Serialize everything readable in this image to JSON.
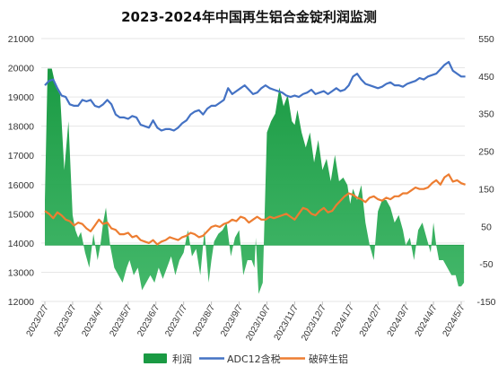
{
  "chart_data": {
    "type": "line",
    "title": "2023-2024年中国再生铝合金锭利润监测",
    "y_left": {
      "ylim": [
        12000,
        21000
      ],
      "ticks": [
        12000,
        13000,
        14000,
        15000,
        16000,
        17000,
        18000,
        19000,
        20000,
        21000
      ]
    },
    "y_right": {
      "ylim": [
        -150,
        550
      ],
      "ticks": [
        -150,
        -50,
        50,
        150,
        250,
        350,
        450,
        550
      ]
    },
    "x_ticks": [
      "2023/2/7",
      "2023/3/7",
      "2023/4/7",
      "2023/5/7",
      "2023/6/7",
      "2023/7/7",
      "2023/8/7",
      "2023/9/7",
      "2023/10/7",
      "2023/11/7",
      "2023/12/7",
      "2024/1/7",
      "2024/2/7",
      "2024/3/7",
      "2024/4/7",
      "2024/5/7"
    ],
    "grid": "horizontal",
    "legend_position": "bottom",
    "series": [
      {
        "name": "利润",
        "type": "area",
        "axis": "right",
        "color": "#1a9a43",
        "x": [
          0,
          0.1,
          0.25,
          0.4,
          0.55,
          0.7,
          0.85,
          1,
          1.1,
          1.2,
          1.3,
          1.45,
          1.6,
          1.75,
          1.9,
          2,
          2.1,
          2.2,
          2.35,
          2.5,
          2.65,
          2.8,
          2.95,
          3.05,
          3.2,
          3.35,
          3.5,
          3.65,
          3.8,
          3.95,
          4.1,
          4.25,
          4.4,
          4.55,
          4.7,
          4.85,
          5,
          5.15,
          5.3,
          5.45,
          5.6,
          5.75,
          5.9,
          6,
          6.1,
          6.25,
          6.4,
          6.55,
          6.7,
          6.85,
          7,
          7.15,
          7.3,
          7.45,
          7.55,
          7.6,
          7.7,
          7.85,
          8,
          8.15,
          8.3,
          8.45,
          8.6,
          8.75,
          8.9,
          9,
          9.1,
          9.25,
          9.4,
          9.55,
          9.7,
          9.85,
          10,
          10.15,
          10.3,
          10.45,
          10.6,
          10.75,
          10.9,
          11,
          11.1,
          11.25,
          11.4,
          11.55,
          11.7,
          11.85,
          12,
          12.15,
          12.3,
          12.45,
          12.6,
          12.75,
          12.9,
          13,
          13.15,
          13.3,
          13.45,
          13.6,
          13.75,
          13.9,
          14,
          14.1,
          14.2,
          14.35,
          14.5,
          14.65,
          14.8,
          14.9,
          15,
          15.1
        ],
        "values": [
          120,
          470,
          470,
          420,
          400,
          200,
          330,
          80,
          40,
          20,
          35,
          -20,
          -60,
          30,
          -40,
          0,
          60,
          100,
          0,
          -60,
          -80,
          -100,
          -60,
          -40,
          -80,
          -60,
          -120,
          -100,
          -80,
          -100,
          -60,
          -90,
          -60,
          -30,
          -80,
          -40,
          -20,
          40,
          -30,
          -10,
          -80,
          40,
          -100,
          -40,
          10,
          30,
          40,
          60,
          -30,
          20,
          40,
          -80,
          -40,
          -40,
          -60,
          20,
          -130,
          -100,
          300,
          330,
          350,
          420,
          370,
          400,
          330,
          320,
          360,
          300,
          260,
          300,
          220,
          280,
          200,
          230,
          170,
          240,
          170,
          180,
          160,
          110,
          150,
          120,
          160,
          60,
          0,
          -40,
          90,
          120,
          120,
          100,
          60,
          80,
          40,
          0,
          20,
          -40,
          40,
          60,
          20,
          -20,
          60,
          0,
          -40,
          -40,
          -60,
          -80,
          -80,
          -110,
          -110,
          -100
        ],
        "comment": "right-axis profit area (CNY/ton)"
      },
      {
        "name": "ADC12含税",
        "type": "line",
        "axis": "left",
        "color": "#4472c4",
        "x": [
          0,
          0.15,
          0.3,
          0.45,
          0.6,
          0.75,
          0.9,
          1.05,
          1.2,
          1.35,
          1.5,
          1.65,
          1.8,
          1.95,
          2.1,
          2.25,
          2.4,
          2.55,
          2.7,
          2.85,
          3,
          3.15,
          3.3,
          3.45,
          3.6,
          3.75,
          3.9,
          4.05,
          4.2,
          4.35,
          4.5,
          4.65,
          4.8,
          4.95,
          5.1,
          5.25,
          5.4,
          5.55,
          5.7,
          5.85,
          6,
          6.15,
          6.3,
          6.45,
          6.6,
          6.75,
          6.9,
          7.05,
          7.2,
          7.35,
          7.5,
          7.65,
          7.8,
          7.95,
          8.1,
          8.25,
          8.4,
          8.55,
          8.7,
          8.85,
          9,
          9.15,
          9.3,
          9.45,
          9.6,
          9.75,
          9.9,
          10.05,
          10.2,
          10.35,
          10.5,
          10.65,
          10.8,
          10.95,
          11.1,
          11.25,
          11.4,
          11.55,
          11.7,
          11.85,
          12,
          12.15,
          12.3,
          12.45,
          12.6,
          12.75,
          12.9,
          13.05,
          13.2,
          13.35,
          13.5,
          13.65,
          13.8,
          13.95,
          14.1,
          14.25,
          14.4,
          14.55,
          14.7,
          14.85,
          15,
          15.15
        ],
        "values": [
          19400,
          19550,
          19600,
          19300,
          19050,
          19000,
          18750,
          18700,
          18700,
          18900,
          18850,
          18900,
          18700,
          18650,
          18750,
          18900,
          18750,
          18400,
          18300,
          18300,
          18250,
          18350,
          18300,
          18050,
          18000,
          17950,
          18200,
          17950,
          17850,
          17900,
          17900,
          17850,
          17950,
          18100,
          18200,
          18400,
          18500,
          18550,
          18400,
          18600,
          18700,
          18700,
          18800,
          18900,
          19300,
          19100,
          19200,
          19300,
          19400,
          19250,
          19100,
          19150,
          19300,
          19400,
          19300,
          19250,
          19200,
          19150,
          19050,
          19000,
          19050,
          19000,
          19100,
          19150,
          19250,
          19100,
          19150,
          19200,
          19100,
          19200,
          19300,
          19200,
          19250,
          19400,
          19700,
          19800,
          19600,
          19450,
          19400,
          19350,
          19300,
          19350,
          19450,
          19500,
          19400,
          19400,
          19350,
          19450,
          19500,
          19550,
          19650,
          19600,
          19700,
          19750,
          19800,
          19950,
          20100,
          20200,
          19900,
          19800,
          19700,
          19700
        ],
        "comment": "left-axis ADC12 tax-inclusive price (CNY/ton)"
      },
      {
        "name": "破碎生铝",
        "type": "line",
        "axis": "left",
        "color": "#ed7d31",
        "x": [
          0,
          0.15,
          0.3,
          0.45,
          0.6,
          0.75,
          0.9,
          1.05,
          1.2,
          1.35,
          1.5,
          1.65,
          1.8,
          1.95,
          2.1,
          2.25,
          2.4,
          2.55,
          2.7,
          2.85,
          3,
          3.15,
          3.3,
          3.45,
          3.6,
          3.75,
          3.9,
          4.05,
          4.2,
          4.35,
          4.5,
          4.65,
          4.8,
          4.95,
          5.1,
          5.25,
          5.4,
          5.55,
          5.7,
          5.85,
          6,
          6.15,
          6.3,
          6.45,
          6.6,
          6.75,
          6.9,
          7.05,
          7.2,
          7.35,
          7.5,
          7.65,
          7.8,
          7.95,
          8.1,
          8.25,
          8.4,
          8.55,
          8.7,
          8.85,
          9,
          9.15,
          9.3,
          9.45,
          9.6,
          9.75,
          9.9,
          10.05,
          10.2,
          10.35,
          10.5,
          10.65,
          10.8,
          10.95,
          11.1,
          11.25,
          11.4,
          11.55,
          11.7,
          11.85,
          12,
          12.15,
          12.3,
          12.45,
          12.6,
          12.75,
          12.9,
          13.05,
          13.2,
          13.35,
          13.5,
          13.65,
          13.8,
          13.95,
          14.1,
          14.25,
          14.4,
          14.55,
          14.7,
          14.85,
          15,
          15.15
        ],
        "values": [
          15100,
          15000,
          14850,
          15050,
          14950,
          14800,
          14750,
          14600,
          14700,
          14650,
          14500,
          14400,
          14600,
          14800,
          14650,
          14700,
          14500,
          14450,
          14300,
          14300,
          14350,
          14200,
          14250,
          14100,
          14050,
          14000,
          14100,
          13950,
          14050,
          14100,
          14200,
          14150,
          14100,
          14200,
          14250,
          14350,
          14300,
          14200,
          14250,
          14400,
          14550,
          14600,
          14550,
          14650,
          14700,
          14800,
          14750,
          14900,
          14850,
          14700,
          14800,
          14900,
          14800,
          14800,
          14900,
          14850,
          14900,
          14950,
          15000,
          14900,
          14800,
          15000,
          15200,
          15150,
          15000,
          14950,
          15100,
          15200,
          15050,
          15100,
          15300,
          15450,
          15600,
          15700,
          15650,
          15550,
          15500,
          15400,
          15550,
          15600,
          15500,
          15450,
          15550,
          15500,
          15600,
          15600,
          15700,
          15700,
          15800,
          15900,
          15850,
          15850,
          15900,
          16050,
          16150,
          16000,
          16250,
          16350,
          16100,
          16150,
          16050,
          16000
        ],
        "comment": "left-axis crushed raw aluminium price (CNY/ton)"
      }
    ]
  }
}
